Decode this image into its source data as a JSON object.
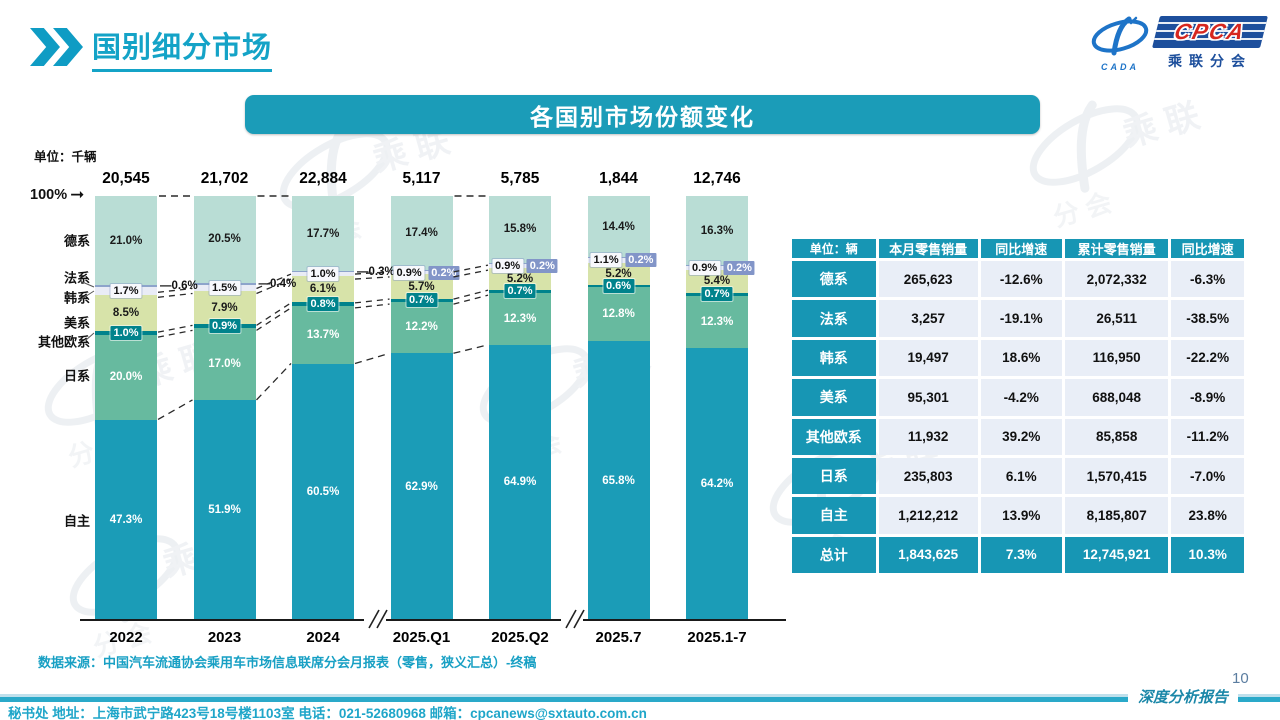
{
  "header": {
    "title": "国别细分市场"
  },
  "logo": {
    "wordmark": "CPCA",
    "emblem_text": "CADA",
    "subtitle": "乘联分会"
  },
  "banner": {
    "title": "各国别市场份额变化"
  },
  "chart_data": {
    "type": "bar",
    "subtype": "stacked-100-percent",
    "unit_label": "单位：千辆",
    "y_top_label": "100%",
    "categories": [
      "2022",
      "2023",
      "2024",
      "2025.Q1",
      "2025.Q2",
      "2025.7",
      "2025.1-7"
    ],
    "totals": [
      "20,545",
      "21,702",
      "22,884",
      "5,117",
      "5,785",
      "1,844",
      "12,746"
    ],
    "series": [
      {
        "name": "自主",
        "color": "#1b9cb7",
        "values": [
          47.3,
          51.9,
          60.5,
          62.9,
          64.9,
          65.8,
          64.2
        ]
      },
      {
        "name": "日系",
        "color": "#67ba9f",
        "values": [
          20.0,
          17.0,
          13.7,
          12.2,
          12.3,
          12.8,
          12.3
        ]
      },
      {
        "name": "其他欧系",
        "color": "#00838c",
        "values": [
          1.0,
          0.9,
          0.8,
          0.7,
          0.7,
          0.6,
          0.7
        ]
      },
      {
        "name": "美系",
        "color": "#d7e3a9",
        "values": [
          8.5,
          7.9,
          6.1,
          5.7,
          5.2,
          5.2,
          5.4
        ]
      },
      {
        "name": "韩系",
        "color": "#e9ecf6",
        "values": [
          1.7,
          1.5,
          1.0,
          0.9,
          0.9,
          1.1,
          0.9
        ]
      },
      {
        "name": "法系",
        "color": "#8da4cb",
        "values": [
          0.6,
          0.4,
          0.3,
          0.2,
          0.2,
          0.2,
          0.2
        ]
      },
      {
        "name": "德系",
        "color": "#b9ddd5",
        "values": [
          21.0,
          20.5,
          17.7,
          17.4,
          15.8,
          14.4,
          16.3
        ]
      }
    ],
    "axis_breaks_between": [
      [
        "2024",
        "2025.Q1"
      ],
      [
        "2025.Q2",
        "2025.7"
      ]
    ],
    "legend_position": "left-axis-labels",
    "grid": false
  },
  "table": {
    "unit_header": "单位：辆",
    "columns": [
      "本月零售销量",
      "同比增速",
      "累计零售销量",
      "同比增速"
    ],
    "rows": [
      {
        "label": "德系",
        "cells": [
          "265,623",
          "-12.6%",
          "2,072,332",
          "-6.3%"
        ]
      },
      {
        "label": "法系",
        "cells": [
          "3,257",
          "-19.1%",
          "26,511",
          "-38.5%"
        ]
      },
      {
        "label": "韩系",
        "cells": [
          "19,497",
          "18.6%",
          "116,950",
          "-22.2%"
        ]
      },
      {
        "label": "美系",
        "cells": [
          "95,301",
          "-4.2%",
          "688,048",
          "-8.9%"
        ]
      },
      {
        "label": "其他欧系",
        "cells": [
          "11,932",
          "39.2%",
          "85,858",
          "-11.2%"
        ]
      },
      {
        "label": "日系",
        "cells": [
          "235,803",
          "6.1%",
          "1,570,415",
          "-7.0%"
        ]
      },
      {
        "label": "自主",
        "cells": [
          "1,212,212",
          "13.9%",
          "8,185,807",
          "23.8%"
        ]
      }
    ],
    "total_row": {
      "label": "总计",
      "cells": [
        "1,843,625",
        "7.3%",
        "12,745,921",
        "10.3%"
      ]
    }
  },
  "source_note": "数据来源：中国汽车流通协会乘用车市场信息联席分会月报表（零售，狭义汇总）-终稿",
  "footer": {
    "left": "秘书处  地址：上海市武宁路423号18号楼1103室  电话：021-52680968   邮箱：cpcanews@sxtauto.com.cn",
    "report_label": "深度分析报告",
    "page_number": "10"
  },
  "colors": {
    "accent_teal": "#1b9cb8",
    "logo_blue": "#1d4f9c",
    "logo_red": "#d6271f",
    "footer_teal": "#1fa6c9"
  }
}
